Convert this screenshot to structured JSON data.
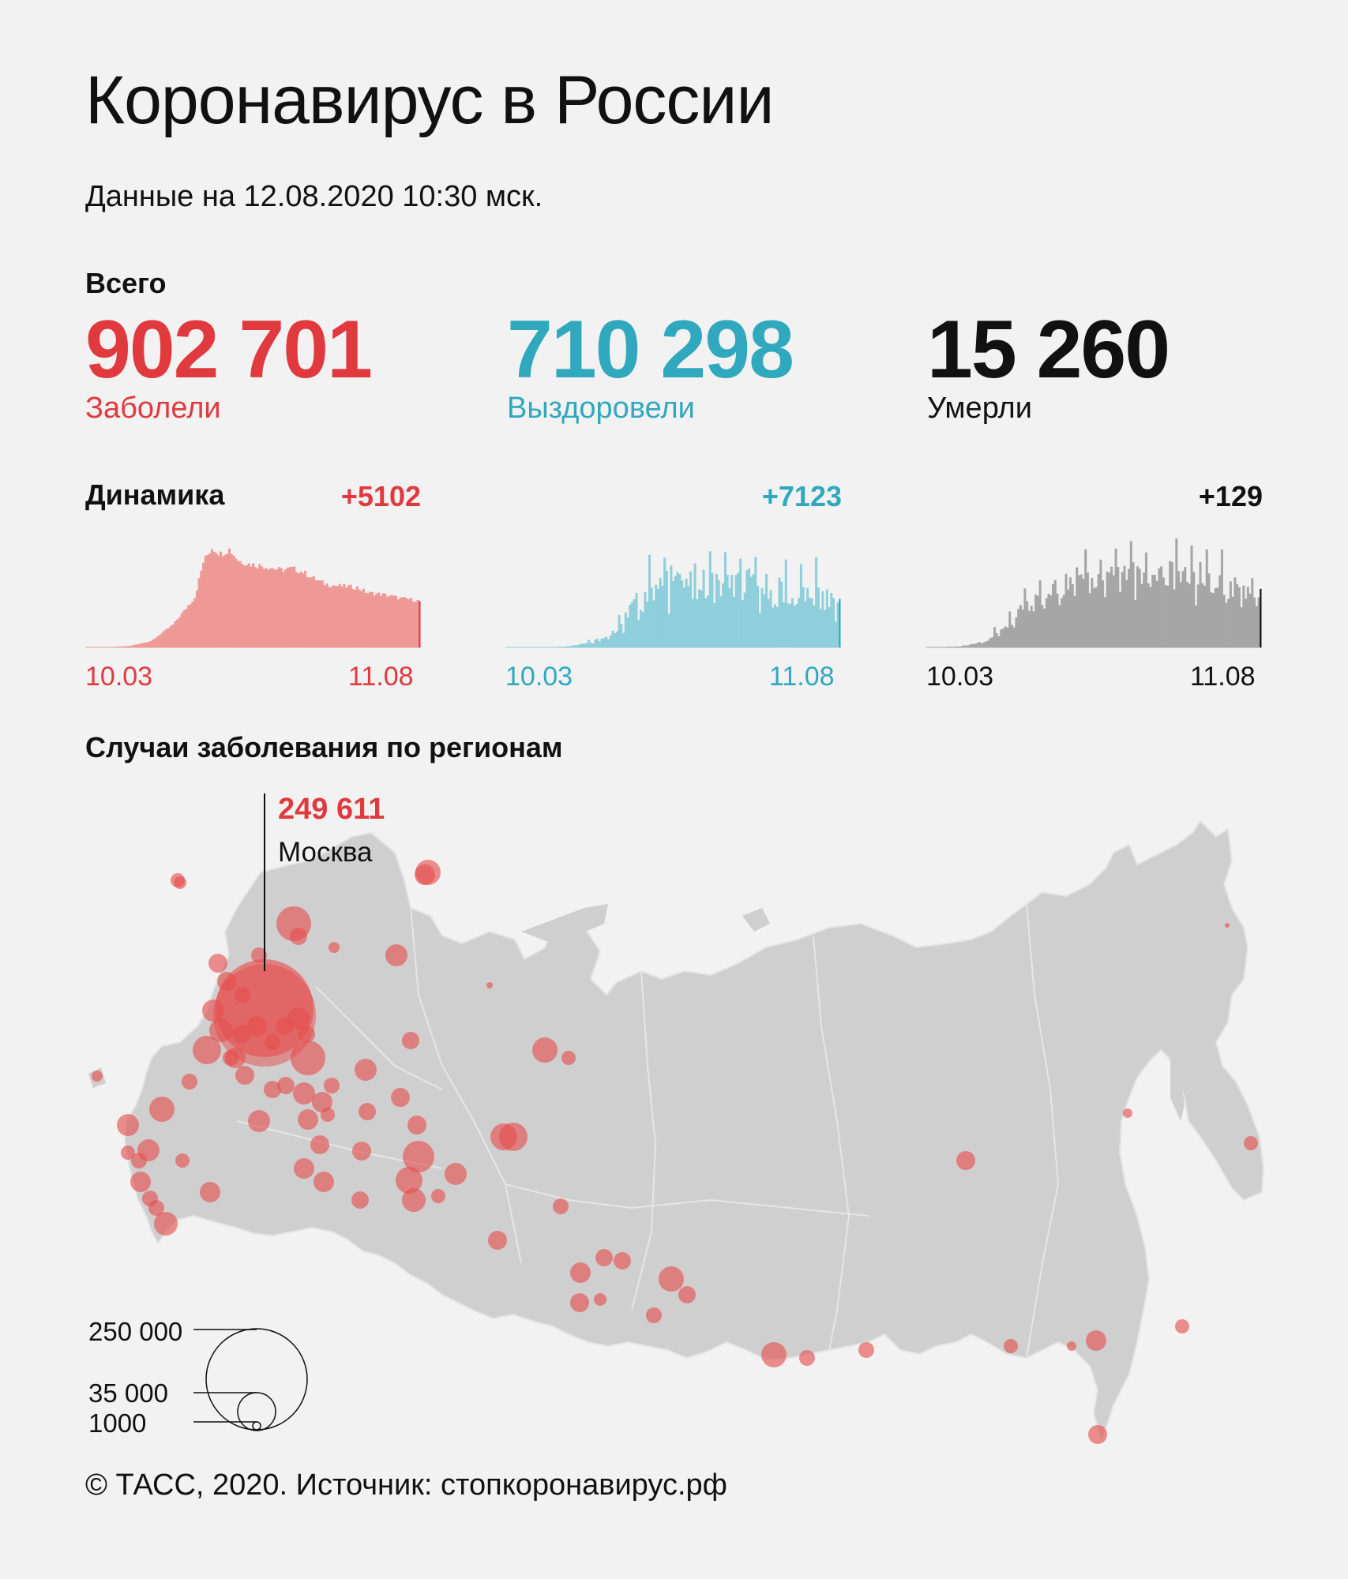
{
  "header": {
    "title": "Коронавирус в России",
    "subtitle": "Данные на 12.08.2020 10:30 мск."
  },
  "totals": {
    "label": "Всего",
    "cases": {
      "value": "902 701",
      "caption": "Заболели"
    },
    "recovered": {
      "value": "710 298",
      "caption": "Выздоровели"
    },
    "deaths": {
      "value": "15 260",
      "caption": "Умерли"
    }
  },
  "dynamics": {
    "label": "Динамика",
    "cases_delta": "+5102",
    "recovered_delta": "+7123",
    "deaths_delta": "+129",
    "start_label": "10.03",
    "end_label": "11.08"
  },
  "regions": {
    "title": "Случаи заболевания по регионам",
    "moscow_value": "249 611",
    "moscow_name": "Москва",
    "legend": {
      "l250": "250 000",
      "l35": "35 000",
      "l1": "1000"
    }
  },
  "footer": "© ТАСС, 2020. Источник: стопкоронавирус.рф",
  "colors": {
    "cases": "#e0393e",
    "cases_fill": "#ee9996",
    "recovered": "#30a8be",
    "recovered_fill": "#8fcfdb",
    "deaths": "#111111",
    "deaths_fill": "#a6a6a6",
    "map": "#cfcfcf",
    "bubble": "#e64e4e"
  },
  "chart_data": [
    {
      "type": "bar",
      "name": "cases",
      "x_start": "10.03",
      "x_end": "11.08",
      "days": 155,
      "points": [
        [
          0,
          0
        ],
        [
          10,
          20
        ],
        [
          20,
          150
        ],
        [
          30,
          700
        ],
        [
          40,
          2500
        ],
        [
          50,
          5500
        ],
        [
          54,
          9400
        ],
        [
          58,
          11000
        ],
        [
          62,
          10300
        ],
        [
          66,
          10800
        ],
        [
          70,
          9600
        ],
        [
          75,
          9200
        ],
        [
          80,
          9000
        ],
        [
          85,
          8800
        ],
        [
          90,
          8500
        ],
        [
          95,
          8700
        ],
        [
          100,
          8300
        ],
        [
          105,
          7600
        ],
        [
          110,
          7000
        ],
        [
          115,
          6800
        ],
        [
          120,
          6700
        ],
        [
          125,
          6600
        ],
        [
          130,
          6000
        ],
        [
          135,
          5900
        ],
        [
          140,
          5700
        ],
        [
          145,
          5400
        ],
        [
          150,
          5300
        ],
        [
          154,
          5102
        ]
      ],
      "ylim": [
        0,
        12000
      ]
    },
    {
      "type": "bar",
      "name": "recovered",
      "x_start": "10.03",
      "x_end": "11.08",
      "days": 155,
      "points": [
        [
          0,
          0
        ],
        [
          20,
          30
        ],
        [
          30,
          200
        ],
        [
          40,
          800
        ],
        [
          48,
          1800
        ],
        [
          55,
          4000
        ],
        [
          60,
          6500
        ],
        [
          66,
          8000
        ],
        [
          72,
          9000
        ],
        [
          80,
          9500
        ],
        [
          90,
          9000
        ],
        [
          100,
          9200
        ],
        [
          110,
          9000
        ],
        [
          120,
          8500
        ],
        [
          130,
          8000
        ],
        [
          140,
          7800
        ],
        [
          150,
          7000
        ],
        [
          154,
          7123
        ]
      ],
      "ylim": [
        0,
        16000
      ]
    },
    {
      "type": "bar",
      "name": "deaths",
      "x_start": "10.03",
      "x_end": "11.08",
      "days": 155,
      "points": [
        [
          0,
          0
        ],
        [
          15,
          2
        ],
        [
          25,
          10
        ],
        [
          35,
          40
        ],
        [
          45,
          90
        ],
        [
          55,
          110
        ],
        [
          62,
          130
        ],
        [
          70,
          150
        ],
        [
          80,
          160
        ],
        [
          90,
          170
        ],
        [
          100,
          165
        ],
        [
          110,
          160
        ],
        [
          120,
          160
        ],
        [
          130,
          150
        ],
        [
          140,
          130
        ],
        [
          150,
          125
        ],
        [
          154,
          129
        ]
      ],
      "ylim": [
        0,
        240
      ]
    }
  ]
}
